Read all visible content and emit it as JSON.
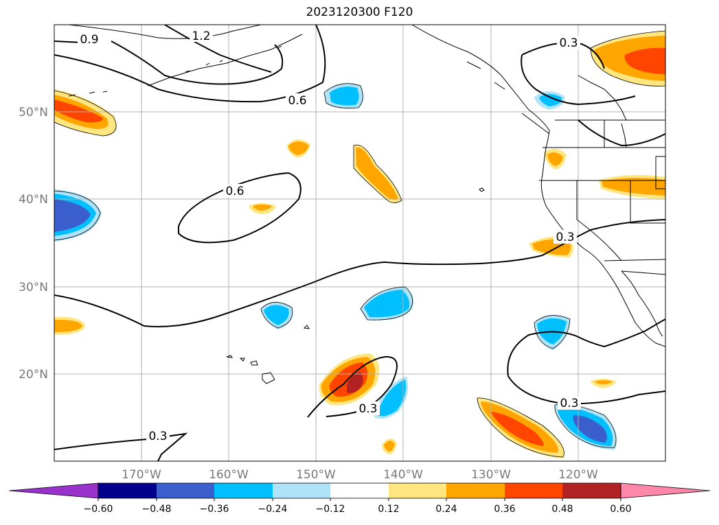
{
  "title": "2023120300 F120",
  "map": {
    "lat_labels": [
      "50°N",
      "40°N",
      "30°N",
      "20°N"
    ],
    "lon_labels": [
      "170°W",
      "160°W",
      "150°W",
      "140°W",
      "130°W",
      "120°W"
    ],
    "contour_labels": [
      "0.9",
      "1.2",
      "0.6",
      "0.6",
      "0.3",
      "0.3",
      "0.3",
      "0.3",
      "0.3"
    ]
  },
  "colorbar": {
    "ticks": [
      "−0.60",
      "−0.48",
      "−0.36",
      "−0.24",
      "−0.12",
      "0.12",
      "0.24",
      "0.36",
      "0.48",
      "0.60"
    ],
    "colors": [
      "#9932cc",
      "#00008b",
      "#3a5fcd",
      "#00bfff",
      "#aee3fa",
      "#ffffff",
      "#ffe680",
      "#ffa500",
      "#ff4500",
      "#b22222",
      "#ff88aa"
    ]
  },
  "colors": {
    "neg_weak": "#aee3fa",
    "neg_mid": "#00bfff",
    "neg_strong": "#3a5fcd",
    "pos_weak": "#ffe680",
    "pos_mid": "#ffa500",
    "pos_strong": "#ff4500",
    "pos_max": "#b22222"
  }
}
